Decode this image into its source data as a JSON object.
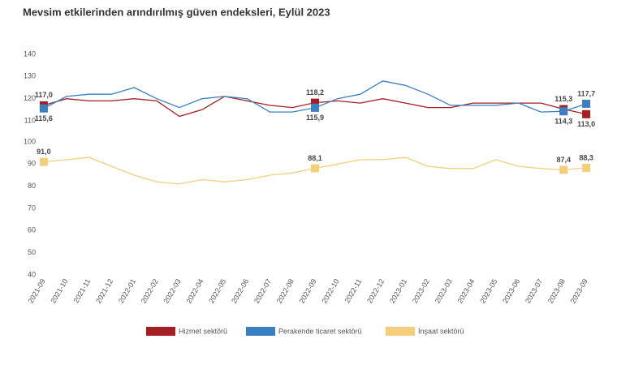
{
  "chart_data": {
    "type": "line",
    "title": "Mevsim etkilerinden arındırılmış güven endeksleri, Eylül 2023",
    "categories": [
      "2021-09",
      "2021-10",
      "2021-11",
      "2021-12",
      "2022-01",
      "2022-02",
      "2022-03",
      "2022-04",
      "2022-05",
      "2022-06",
      "2022-07",
      "2022-08",
      "2022-09",
      "2022-10",
      "2022-11",
      "2022-12",
      "2023-01",
      "2023-02",
      "2023-03",
      "2023-04",
      "2023-05",
      "2023-06",
      "2023-07",
      "2023-08",
      "2023-09"
    ],
    "series": [
      {
        "name": "Hizmet sektörü",
        "color": "#a31f24",
        "axis": "y2",
        "values": [
          117.0,
          120,
          119,
          119,
          120,
          119,
          112,
          115,
          121,
          119,
          117,
          116,
          118.2,
          119,
          118,
          120,
          118,
          116,
          116,
          118,
          118,
          118,
          118,
          115.3,
          113.0
        ],
        "value_labels": [
          "117,0",
          null,
          null,
          null,
          null,
          null,
          null,
          null,
          null,
          null,
          null,
          null,
          "118,2",
          null,
          null,
          null,
          null,
          null,
          null,
          null,
          null,
          null,
          null,
          "115,3",
          "113,0"
        ]
      },
      {
        "name": "Perakende ticaret sektörü",
        "color": "#3a80c1",
        "axis": "y2",
        "values": [
          115.6,
          121,
          122,
          122,
          125,
          120,
          116,
          120,
          121,
          120,
          114,
          114,
          115.9,
          120,
          122,
          128,
          126,
          122,
          117,
          117,
          117,
          118,
          114,
          114.3,
          117.7
        ],
        "value_labels": [
          "115,6",
          null,
          null,
          null,
          null,
          null,
          null,
          null,
          null,
          null,
          null,
          null,
          "115,9",
          null,
          null,
          null,
          null,
          null,
          null,
          null,
          null,
          null,
          null,
          "114,3",
          "117,7"
        ]
      },
      {
        "name": "İnşaat sektörü",
        "color": "#f3cf7c",
        "values": [
          91.0,
          92,
          93,
          89,
          85,
          82,
          81,
          83,
          82,
          83,
          85,
          86,
          88.1,
          90,
          92,
          92,
          93,
          89,
          88,
          88,
          92,
          89,
          88,
          87.4,
          88.3
        ],
        "value_labels": [
          "91,0",
          null,
          null,
          null,
          null,
          null,
          null,
          null,
          null,
          null,
          null,
          null,
          "88,1",
          null,
          null,
          null,
          null,
          null,
          null,
          null,
          null,
          null,
          null,
          "87,4",
          "88,3"
        ]
      }
    ],
    "ylim": [
      40,
      100
    ],
    "yticks": [
      40,
      50,
      60,
      70,
      80,
      90,
      100
    ],
    "y2lim": [
      110,
      140
    ],
    "y2ticks": [
      110,
      120,
      130,
      140
    ],
    "grid": false,
    "legend": "bottom"
  }
}
